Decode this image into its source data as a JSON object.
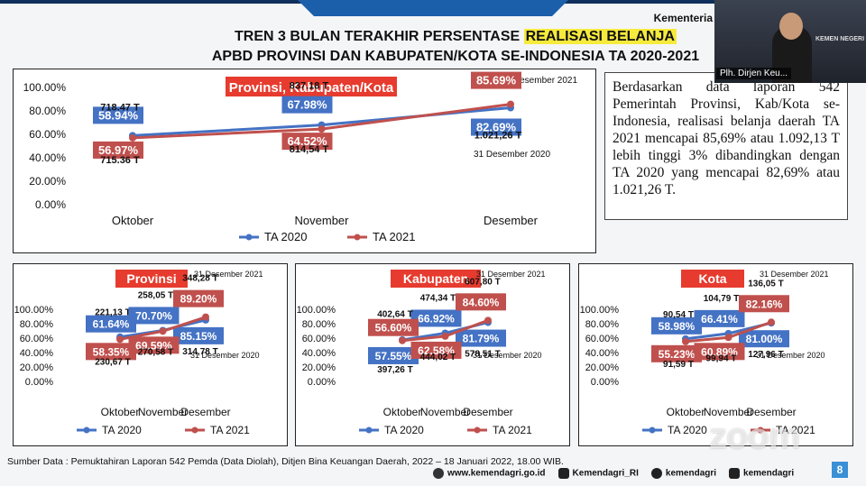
{
  "header": {
    "brand": "Kementeria"
  },
  "title": {
    "line1_a": "TREN 3 BULAN TERAKHIR PERSENTASE ",
    "line1_hl": "REALISASI BELANJA",
    "line2": "APBD PROVINSI DAN KABUPATEN/KOTA SE-INDONESIA TA 2020-2021"
  },
  "note": "Berdasarkan data laporan 542 Pemerintah Provinsi, Kab/Kota se-Indonesia, realisasi belanja daerah TA 2021 mencapai 85,69% atau 1.092,13 T lebih tinggi 3% dibandingkan dengan TA 2020 yang mencapai 82,69% atau 1.021,26 T.",
  "video": {
    "name": "Plh. Dirjen Keu...",
    "sign": "KEMEN NEGERI"
  },
  "source": "Sumber Data : Pemuktahiran Laporan 542 Pemda (Data Diolah), Ditjen Bina Keuangan Daerah, 2022 – 18 Januari 2022, 18.00 WIB.",
  "footer": {
    "web": "www.kemendagri.go.id",
    "fb": "Kemendagri_RI",
    "tw": "kemendagri",
    "ig": "kemendagri"
  },
  "zoom": "zoom",
  "page_number": "8",
  "colors": {
    "ta2020": "#4472c4",
    "ta2021": "#c0504d",
    "box_title": "#e63b2e"
  },
  "chart_data": [
    {
      "type": "line",
      "title": "Provinsi, Kabupaten/Kota",
      "categories": [
        "Oktober",
        "November",
        "Desember"
      ],
      "yticks": [
        "100.00%",
        "80.00%",
        "60.00%",
        "40.00%",
        "20.00%",
        "0.00%"
      ],
      "ylim": [
        0,
        100
      ],
      "series": [
        {
          "name": "TA 2020",
          "values": [
            58.94,
            67.98,
            82.69
          ],
          "labels": [
            "58.94%",
            "67.98%",
            "82.69%"
          ],
          "amounts": [
            "718.47 T",
            "837.18 T",
            "1.021,26 T"
          ]
        },
        {
          "name": "TA 2021",
          "values": [
            56.97,
            64.52,
            85.69
          ],
          "labels": [
            "56.97%",
            "64.52%",
            "85.69%"
          ],
          "amounts": [
            "715.36 T",
            "814,54 T",
            "1.092,13 T"
          ]
        }
      ],
      "annotations": [
        "31 Desember 2021",
        "31 Desember 2020"
      ],
      "legend": "bottom"
    },
    {
      "type": "line",
      "title": "Provinsi",
      "categories": [
        "Oktober",
        "November",
        "Desember"
      ],
      "yticks": [
        "100.00%",
        "80.00%",
        "60.00%",
        "40.00%",
        "20.00%",
        "0.00%"
      ],
      "ylim": [
        0,
        100
      ],
      "series": [
        {
          "name": "TA 2020",
          "values": [
            61.64,
            70.7,
            85.15
          ],
          "labels": [
            "61.64%",
            "70.70%",
            "85.15%"
          ],
          "amounts": [
            "221,13 T",
            "258,05 T",
            "314,78 T"
          ]
        },
        {
          "name": "TA 2021",
          "values": [
            58.35,
            69.59,
            89.2
          ],
          "labels": [
            "58.35%",
            "69.59%",
            "89.20%"
          ],
          "amounts": [
            "230,67 T",
            "270,58 T",
            "348,28 T"
          ]
        }
      ],
      "annotations": [
        "31 Desember 2021",
        "31 Desember 2020"
      ],
      "legend": "bottom"
    },
    {
      "type": "line",
      "title": "Kabupaten",
      "categories": [
        "Oktober",
        "November",
        "Desember"
      ],
      "yticks": [
        "100.00%",
        "80.00%",
        "60.00%",
        "40.00%",
        "20.00%",
        "0.00%"
      ],
      "ylim": [
        0,
        100
      ],
      "series": [
        {
          "name": "TA 2020",
          "values": [
            57.55,
            66.92,
            81.79
          ],
          "labels": [
            "57.55%",
            "66.92%",
            "81.79%"
          ],
          "amounts": [
            "397,26 T",
            "474,34 T",
            "578,51 T"
          ]
        },
        {
          "name": "TA 2021",
          "values": [
            56.6,
            62.58,
            84.6
          ],
          "labels": [
            "56.60%",
            "62.58%",
            "84.60%"
          ],
          "amounts": [
            "402,64 T",
            "444,02 T",
            "607,80 T"
          ]
        }
      ],
      "annotations": [
        "31 Desember 2021",
        "31 Desember 2020"
      ],
      "legend": "bottom"
    },
    {
      "type": "line",
      "title": "Kota",
      "categories": [
        "Oktober",
        "November",
        "Desember"
      ],
      "yticks": [
        "100.00%",
        "80.00%",
        "60.00%",
        "40.00%",
        "20.00%",
        "0.00%"
      ],
      "ylim": [
        0,
        100
      ],
      "series": [
        {
          "name": "TA 2020",
          "values": [
            58.98,
            66.41,
            81.0
          ],
          "labels": [
            "58.98%",
            "66.41%",
            "81.00%"
          ],
          "amounts": [
            "90,54 T",
            "104,79 T",
            "127,96 T"
          ]
        },
        {
          "name": "TA 2021",
          "values": [
            55.23,
            60.89,
            82.16
          ],
          "labels": [
            "55.23%",
            "60.89%",
            "82.16%"
          ],
          "amounts": [
            "91,59 T",
            "99,94 T",
            "136,05 T"
          ]
        }
      ],
      "annotations": [
        "31 Desember 2021",
        "31 Desember 2020"
      ],
      "legend": "bottom"
    }
  ]
}
